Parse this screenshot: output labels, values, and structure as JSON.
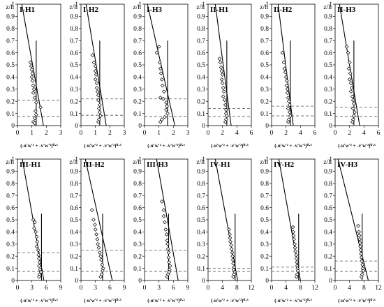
{
  "ylabel": "z/h",
  "xlabel": "(-u'w'² + -v'w'²)⁰·⁵",
  "yticks": [
    "0",
    "0.1",
    "0.2",
    "0.3",
    "0.4",
    "0.5",
    "0.6",
    "0.7",
    "0.8",
    "0.9",
    "1"
  ],
  "chart_data": [
    {
      "type": "scatter",
      "title": "I-H1",
      "xlim": [
        0,
        3
      ],
      "xticks": [
        0,
        1,
        2,
        3
      ],
      "ylim": [
        0,
        1
      ],
      "ref_x": 1.3,
      "ref_top": 0.7,
      "fit_line": [
        [
          0.3,
          1.0
        ],
        [
          1.8,
          0.0
        ]
      ],
      "dashed_y": [
        0.21,
        0.075
      ],
      "points": [
        [
          0.9,
          0.52
        ],
        [
          0.95,
          0.49
        ],
        [
          1.0,
          0.46
        ],
        [
          1.05,
          0.43
        ],
        [
          1.0,
          0.4
        ],
        [
          1.05,
          0.37
        ],
        [
          1.1,
          0.33
        ],
        [
          1.15,
          0.3
        ],
        [
          1.1,
          0.27
        ],
        [
          1.2,
          0.23
        ],
        [
          1.3,
          0.19
        ],
        [
          1.6,
          0.15
        ],
        [
          1.25,
          0.12
        ],
        [
          1.3,
          0.09
        ],
        [
          1.2,
          0.06
        ],
        [
          1.1,
          0.03
        ],
        [
          1.2,
          0.02
        ]
      ]
    },
    {
      "type": "scatter",
      "title": "I-H2",
      "xlim": [
        0,
        3
      ],
      "xticks": [
        0,
        1,
        2,
        3
      ],
      "ylim": [
        0,
        1
      ],
      "ref_x": 1.3,
      "ref_top": 0.7,
      "fit_line": [
        [
          0.35,
          1.0
        ],
        [
          1.75,
          0.0
        ]
      ],
      "dashed_y": [
        0.22,
        0.085
      ],
      "points": [
        [
          0.8,
          0.58
        ],
        [
          0.9,
          0.52
        ],
        [
          1.0,
          0.49
        ],
        [
          1.0,
          0.45
        ],
        [
          1.05,
          0.42
        ],
        [
          1.0,
          0.38
        ],
        [
          1.1,
          0.35
        ],
        [
          1.1,
          0.31
        ],
        [
          1.15,
          0.28
        ],
        [
          1.2,
          0.25
        ],
        [
          1.2,
          0.21
        ],
        [
          1.3,
          0.17
        ],
        [
          1.25,
          0.14
        ],
        [
          1.3,
          0.11
        ],
        [
          1.35,
          0.08
        ],
        [
          1.25,
          0.05
        ],
        [
          1.2,
          0.03
        ]
      ]
    },
    {
      "type": "scatter",
      "title": "I-H3",
      "xlim": [
        0,
        3
      ],
      "xticks": [
        0,
        1,
        2,
        3
      ],
      "ylim": [
        0,
        1
      ],
      "ref_x": 1.6,
      "ref_top": 0.7,
      "fit_line": [
        [
          0.2,
          1.0
        ],
        [
          2.1,
          0.0
        ]
      ],
      "dashed_y": [
        0.22,
        0.075
      ],
      "points": [
        [
          1.0,
          0.65
        ],
        [
          0.85,
          0.6
        ],
        [
          1.05,
          0.52
        ],
        [
          1.1,
          0.47
        ],
        [
          1.15,
          0.43
        ],
        [
          1.2,
          0.38
        ],
        [
          1.25,
          0.33
        ],
        [
          1.35,
          0.28
        ],
        [
          1.1,
          0.23
        ],
        [
          1.3,
          0.22
        ],
        [
          1.5,
          0.19
        ],
        [
          1.55,
          0.16
        ],
        [
          1.5,
          0.13
        ],
        [
          1.6,
          0.1
        ],
        [
          1.4,
          0.07
        ],
        [
          1.2,
          0.05
        ],
        [
          1.1,
          0.03
        ]
      ]
    },
    {
      "type": "scatter",
      "title": "II-H1",
      "xlim": [
        0,
        6
      ],
      "xticks": [
        0,
        2,
        4,
        6
      ],
      "ylim": [
        0,
        1
      ],
      "ref_x": 2.6,
      "ref_top": 0.7,
      "fit_line": [
        [
          1.0,
          1.0
        ],
        [
          3.2,
          0.0
        ]
      ],
      "dashed_y": [
        0.14,
        0.075
      ],
      "points": [
        [
          1.6,
          0.55
        ],
        [
          1.7,
          0.52
        ],
        [
          1.8,
          0.48
        ],
        [
          1.9,
          0.45
        ],
        [
          2.0,
          0.42
        ],
        [
          1.9,
          0.38
        ],
        [
          2.0,
          0.35
        ],
        [
          2.1,
          0.31
        ],
        [
          2.2,
          0.28
        ],
        [
          2.1,
          0.24
        ],
        [
          2.3,
          0.21
        ],
        [
          2.4,
          0.17
        ],
        [
          2.5,
          0.13
        ],
        [
          2.5,
          0.1
        ],
        [
          2.6,
          0.08
        ],
        [
          2.5,
          0.05
        ],
        [
          2.4,
          0.03
        ]
      ]
    },
    {
      "type": "scatter",
      "title": "II-H2",
      "xlim": [
        0,
        6
      ],
      "xticks": [
        0,
        2,
        4,
        6
      ],
      "ylim": [
        0,
        1
      ],
      "ref_x": 2.6,
      "ref_top": 0.7,
      "fit_line": [
        [
          0.9,
          1.0
        ],
        [
          3.0,
          0.0
        ]
      ],
      "dashed_y": [
        0.16,
        0.08
      ],
      "points": [
        [
          1.5,
          0.6
        ],
        [
          1.7,
          0.52
        ],
        [
          1.8,
          0.47
        ],
        [
          1.9,
          0.44
        ],
        [
          2.0,
          0.4
        ],
        [
          2.1,
          0.37
        ],
        [
          2.1,
          0.33
        ],
        [
          2.2,
          0.3
        ],
        [
          2.2,
          0.27
        ],
        [
          2.3,
          0.23
        ],
        [
          2.4,
          0.2
        ],
        [
          2.5,
          0.17
        ],
        [
          2.3,
          0.14
        ],
        [
          2.5,
          0.11
        ],
        [
          2.6,
          0.08
        ],
        [
          2.4,
          0.05
        ],
        [
          2.3,
          0.03
        ]
      ]
    },
    {
      "type": "scatter",
      "title": "II-H3",
      "xlim": [
        0,
        6
      ],
      "xticks": [
        0,
        2,
        4,
        6
      ],
      "ylim": [
        0,
        1
      ],
      "ref_x": 2.6,
      "ref_top": 0.7,
      "fit_line": [
        [
          0.6,
          1.0
        ],
        [
          3.4,
          0.0
        ]
      ],
      "dashed_y": [
        0.15,
        0.075
      ],
      "points": [
        [
          1.6,
          0.65
        ],
        [
          1.8,
          0.6
        ],
        [
          2.0,
          0.52
        ],
        [
          1.9,
          0.47
        ],
        [
          2.1,
          0.43
        ],
        [
          2.0,
          0.38
        ],
        [
          2.2,
          0.35
        ],
        [
          2.3,
          0.31
        ],
        [
          2.2,
          0.28
        ],
        [
          2.4,
          0.24
        ],
        [
          2.5,
          0.21
        ],
        [
          2.6,
          0.18
        ],
        [
          2.5,
          0.14
        ],
        [
          2.7,
          0.11
        ],
        [
          2.6,
          0.08
        ],
        [
          2.5,
          0.05
        ],
        [
          2.4,
          0.03
        ]
      ]
    },
    {
      "type": "scatter",
      "title": "III-H1",
      "xlim": [
        0,
        9
      ],
      "xticks": [
        0,
        3,
        6,
        9
      ],
      "ylim": [
        0,
        1
      ],
      "ref_x": 5.0,
      "ref_top": 0.55,
      "fit_line": [
        [
          1.0,
          1.0
        ],
        [
          5.5,
          0.0
        ]
      ],
      "dashed_y": [
        0.23,
        0.075
      ],
      "points": [
        [
          3.3,
          0.5
        ],
        [
          3.6,
          0.48
        ],
        [
          3.5,
          0.43
        ],
        [
          3.8,
          0.4
        ],
        [
          4.0,
          0.36
        ],
        [
          4.1,
          0.32
        ],
        [
          4.0,
          0.28
        ],
        [
          4.3,
          0.25
        ],
        [
          4.4,
          0.21
        ],
        [
          4.5,
          0.18
        ],
        [
          4.6,
          0.15
        ],
        [
          4.5,
          0.12
        ],
        [
          4.7,
          0.09
        ],
        [
          4.9,
          0.07
        ],
        [
          4.6,
          0.05
        ],
        [
          4.5,
          0.03
        ]
      ]
    },
    {
      "type": "scatter",
      "title": "III-H2",
      "xlim": [
        0,
        9
      ],
      "xticks": [
        0,
        3,
        6,
        9
      ],
      "ylim": [
        0,
        1
      ],
      "ref_x": 4.5,
      "ref_top": 0.55,
      "fit_line": [
        [
          0.9,
          1.0
        ],
        [
          6.5,
          0.0
        ]
      ],
      "dashed_y": [
        0.25,
        0.075
      ],
      "points": [
        [
          2.3,
          0.58
        ],
        [
          2.6,
          0.5
        ],
        [
          2.9,
          0.46
        ],
        [
          3.0,
          0.42
        ],
        [
          3.2,
          0.38
        ],
        [
          3.4,
          0.34
        ],
        [
          3.5,
          0.3
        ],
        [
          3.7,
          0.27
        ],
        [
          3.9,
          0.23
        ],
        [
          4.1,
          0.2
        ],
        [
          4.2,
          0.17
        ],
        [
          4.4,
          0.13
        ],
        [
          4.6,
          0.1
        ],
        [
          4.5,
          0.08
        ],
        [
          4.3,
          0.05
        ],
        [
          4.1,
          0.03
        ]
      ]
    },
    {
      "type": "scatter",
      "title": "III-H3",
      "xlim": [
        0,
        9
      ],
      "xticks": [
        0,
        3,
        6,
        9
      ],
      "ylim": [
        0,
        1
      ],
      "ref_x": 5.0,
      "ref_top": 0.55,
      "fit_line": [
        [
          2.5,
          1.0
        ],
        [
          7.0,
          0.0
        ]
      ],
      "dashed_y": [
        0.25,
        0.075
      ],
      "points": [
        [
          3.6,
          0.65
        ],
        [
          4.0,
          0.58
        ],
        [
          4.0,
          0.53
        ],
        [
          4.2,
          0.48
        ],
        [
          4.4,
          0.42
        ],
        [
          4.6,
          0.38
        ],
        [
          4.7,
          0.33
        ],
        [
          4.8,
          0.3
        ],
        [
          4.9,
          0.26
        ],
        [
          5.0,
          0.23
        ],
        [
          5.0,
          0.19
        ],
        [
          5.1,
          0.15
        ],
        [
          5.3,
          0.12
        ],
        [
          5.2,
          0.09
        ],
        [
          5.1,
          0.07
        ],
        [
          4.9,
          0.05
        ],
        [
          4.7,
          0.03
        ]
      ]
    },
    {
      "type": "scatter",
      "title": "IV-H1",
      "xlim": [
        0,
        12
      ],
      "xticks": [
        0,
        4,
        8,
        12
      ],
      "ylim": [
        0,
        1
      ],
      "ref_x": 7.5,
      "ref_top": 0.55,
      "fit_line": [
        [
          2.0,
          1.0
        ],
        [
          8.2,
          0.0
        ]
      ],
      "dashed_y": [
        0.1,
        0.075
      ],
      "points": [
        [
          5.8,
          0.42
        ],
        [
          6.0,
          0.38
        ],
        [
          6.1,
          0.35
        ],
        [
          6.2,
          0.32
        ],
        [
          6.4,
          0.29
        ],
        [
          6.5,
          0.26
        ],
        [
          6.7,
          0.23
        ],
        [
          6.8,
          0.2
        ],
        [
          6.9,
          0.17
        ],
        [
          7.0,
          0.14
        ],
        [
          7.2,
          0.11
        ],
        [
          7.1,
          0.09
        ],
        [
          7.4,
          0.07
        ],
        [
          7.2,
          0.05
        ],
        [
          7.0,
          0.03
        ]
      ]
    },
    {
      "type": "scatter",
      "title": "IV-H2",
      "xlim": [
        0,
        12
      ],
      "xticks": [
        0,
        4,
        8,
        12
      ],
      "ylim": [
        0,
        1
      ],
      "ref_x": 7.5,
      "ref_top": 0.55,
      "fit_line": [
        [
          2.0,
          1.0
        ],
        [
          8.0,
          0.0
        ]
      ],
      "dashed_y": [
        0.11,
        0.075
      ],
      "points": [
        [
          5.9,
          0.44
        ],
        [
          6.0,
          0.4
        ],
        [
          6.1,
          0.37
        ],
        [
          6.2,
          0.34
        ],
        [
          6.4,
          0.3
        ],
        [
          6.5,
          0.27
        ],
        [
          6.6,
          0.24
        ],
        [
          6.8,
          0.21
        ],
        [
          6.9,
          0.18
        ],
        [
          7.0,
          0.15
        ],
        [
          7.1,
          0.12
        ],
        [
          7.2,
          0.1
        ],
        [
          7.3,
          0.08
        ],
        [
          7.1,
          0.05
        ],
        [
          6.9,
          0.03
        ]
      ]
    },
    {
      "type": "scatter",
      "title": "IV-H3",
      "xlim": [
        0,
        12
      ],
      "xticks": [
        0,
        4,
        8,
        12
      ],
      "ylim": [
        0,
        1
      ],
      "ref_x": 7.5,
      "ref_top": 0.55,
      "fit_line": [
        [
          0.8,
          1.0
        ],
        [
          9.2,
          0.0
        ]
      ],
      "dashed_y": [
        0.16,
        0.075
      ],
      "points": [
        [
          6.4,
          0.45
        ],
        [
          6.6,
          0.4
        ],
        [
          6.7,
          0.37
        ],
        [
          6.8,
          0.34
        ],
        [
          6.9,
          0.31
        ],
        [
          7.0,
          0.28
        ],
        [
          7.1,
          0.25
        ],
        [
          7.2,
          0.22
        ],
        [
          7.3,
          0.19
        ],
        [
          7.4,
          0.16
        ],
        [
          7.6,
          0.13
        ],
        [
          7.7,
          0.1
        ],
        [
          7.8,
          0.08
        ],
        [
          7.5,
          0.05
        ],
        [
          7.3,
          0.03
        ]
      ]
    }
  ]
}
